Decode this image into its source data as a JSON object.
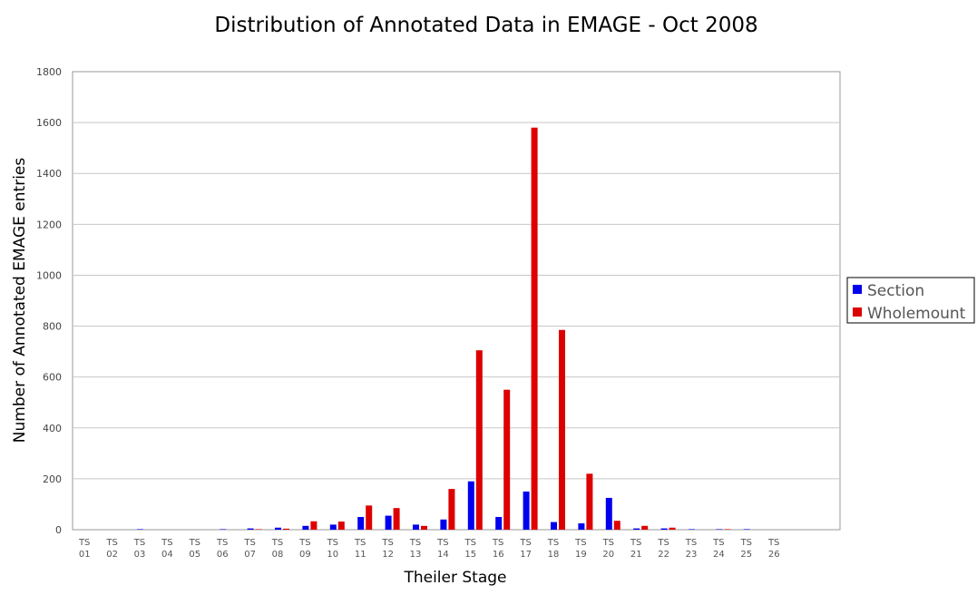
{
  "chart_data": {
    "type": "bar",
    "title": "Distribution of Annotated Data in EMAGE - Oct 2008",
    "xlabel": "Theiler Stage",
    "ylabel": "Number of Annotated EMAGE entries",
    "ylim": [
      0,
      1800
    ],
    "yticks": [
      0,
      200,
      400,
      600,
      800,
      1000,
      1200,
      1400,
      1600,
      1800
    ],
    "grid": true,
    "legend_position": "right",
    "categories": [
      [
        "TS",
        "01"
      ],
      [
        "TS",
        "02"
      ],
      [
        "TS",
        "03"
      ],
      [
        "TS",
        "04"
      ],
      [
        "TS",
        "05"
      ],
      [
        "TS",
        "06"
      ],
      [
        "TS",
        "07"
      ],
      [
        "TS",
        "08"
      ],
      [
        "TS",
        "09"
      ],
      [
        "TS",
        "10"
      ],
      [
        "TS",
        "11"
      ],
      [
        "TS",
        "12"
      ],
      [
        "TS",
        "13"
      ],
      [
        "TS",
        "14"
      ],
      [
        "TS",
        "15"
      ],
      [
        "TS",
        "16"
      ],
      [
        "TS",
        "17"
      ],
      [
        "TS",
        "18"
      ],
      [
        "TS",
        "19"
      ],
      [
        "TS",
        "20"
      ],
      [
        "TS",
        "21"
      ],
      [
        "TS",
        "22"
      ],
      [
        "TS",
        "23"
      ],
      [
        "TS",
        "24"
      ],
      [
        "TS",
        "25"
      ],
      [
        "TS",
        "26"
      ]
    ],
    "series": [
      {
        "name": "Section",
        "color": "#0000ee",
        "values": [
          0,
          0,
          2,
          0,
          0,
          2,
          5,
          8,
          15,
          20,
          50,
          55,
          20,
          40,
          190,
          50,
          150,
          30,
          25,
          125,
          5,
          5,
          2,
          2,
          2,
          0
        ]
      },
      {
        "name": "Wholemount",
        "color": "#dd0000",
        "values": [
          0,
          0,
          0,
          0,
          0,
          0,
          2,
          4,
          33,
          32,
          95,
          85,
          15,
          160,
          705,
          550,
          1580,
          785,
          220,
          35,
          15,
          8,
          0,
          2,
          0,
          0
        ]
      }
    ]
  }
}
